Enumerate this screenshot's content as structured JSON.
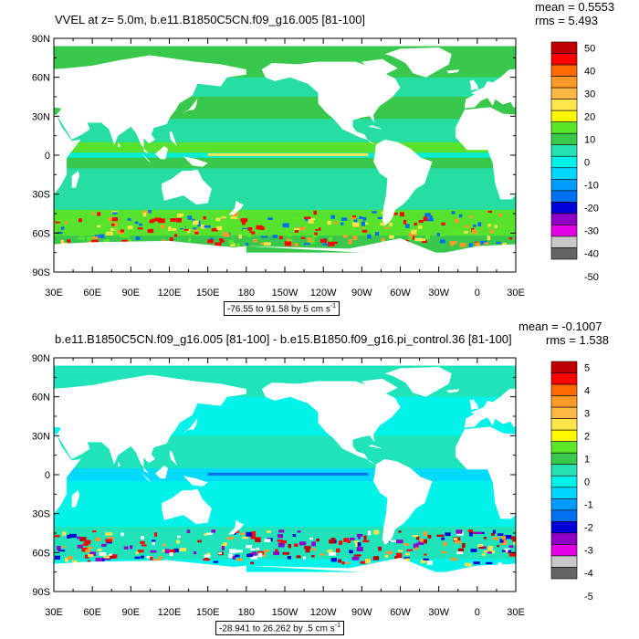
{
  "panels": [
    {
      "title": "VVEL at z=   5.0m, b.e11.B1850C5CN.f09_g16.005 [81-100]",
      "stats": {
        "mean": "mean = 0.5553",
        "rms": "rms = 5.493"
      },
      "caption": {
        "range": "-76.55 to 91.58 by 5 cm s",
        "exponent": "-1"
      },
      "colorbar_labels": [
        "50",
        "40",
        "30",
        "20",
        "10",
        "0",
        "-10",
        "-20",
        "-30",
        "-40",
        "-50"
      ]
    },
    {
      "title": "b.e11.B1850C5CN.f09_g16.005 [81-100] - b.e15.B1850.f09_g16.pi_control.36 [81-100]",
      "stats": {
        "mean": "mean = -0.1007",
        "rms": "rms = 1.538"
      },
      "caption": {
        "range": "-28.941 to 26.262 by .5 cm s",
        "exponent": "-1"
      },
      "colorbar_labels": [
        "5",
        "4",
        "3",
        "2",
        "1",
        "0",
        "-1",
        "-2",
        "-3",
        "-4",
        "-5"
      ]
    }
  ],
  "lat_labels": [
    "90N",
    "60N",
    "30N",
    "0",
    "30S",
    "60S",
    "90S"
  ],
  "lon_labels": [
    "30E",
    "60E",
    "90E",
    "120E",
    "150E",
    "180",
    "150W",
    "120W",
    "90W",
    "60W",
    "30W",
    "0",
    "30E"
  ],
  "colorbar_colors": [
    "#c00000",
    "#ff0000",
    "#ff6a00",
    "#ff9a28",
    "#ffb746",
    "#ffe44a",
    "#fff800",
    "#5ce628",
    "#38c84c",
    "#24e2b2",
    "#00f2e8",
    "#00d6ff",
    "#009cff",
    "#0070f0",
    "#0000d8",
    "#9200c8",
    "#e400e4",
    "#c8c8c8",
    "#646464"
  ]
}
